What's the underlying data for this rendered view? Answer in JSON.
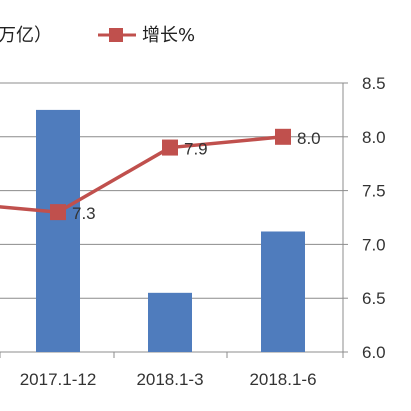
{
  "chart_data": {
    "type": "bar",
    "categories": [
      "2017.1-12",
      "2018.1-3",
      "2018.1-6"
    ],
    "bar_series": {
      "name": "",
      "values": [
        null,
        null,
        null
      ],
      "legend_fragment": "万亿）",
      "color": "#4f7cbd"
    },
    "line_series": {
      "name": "增长%",
      "values": [
        7.3,
        7.9,
        8.0
      ],
      "data_labels": [
        "7.3",
        "7.9",
        "8.0"
      ],
      "color": "#c0504d",
      "axis": "right"
    },
    "right_axis": {
      "ylim": [
        6.0,
        8.5
      ],
      "ticks": [
        "6.0",
        "6.5",
        "7.0",
        "7.5",
        "8.0",
        "8.5"
      ]
    },
    "bar_levels_on_right_axis_scale": [
      8.25,
      6.55,
      7.12
    ],
    "previous_point_edge_value": 7.35,
    "grid": true,
    "legend_position": "top"
  }
}
